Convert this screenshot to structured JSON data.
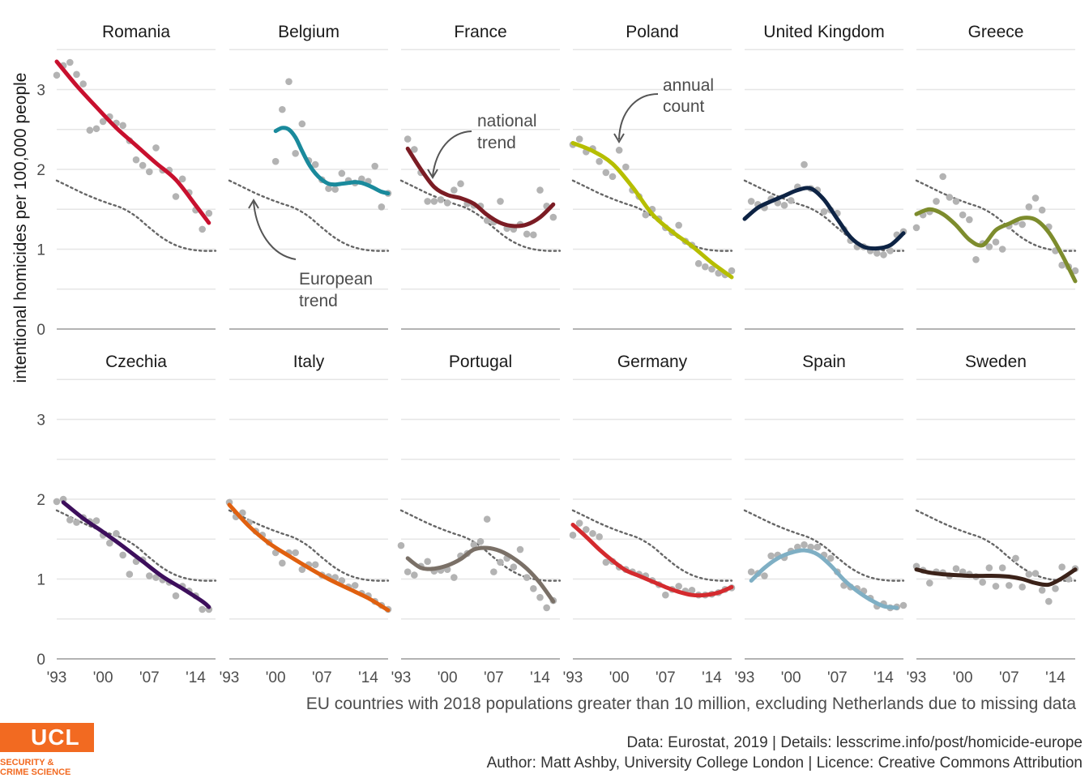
{
  "ylabel": "intentional homicides per 100,000 people",
  "subtitle": "EU countries with 2018 populations greater than 10 million, excluding Netherlands due to missing data",
  "caption": {
    "line1": "Data: Eurostat, 2019 |  Details: lesscrime.info/post/homicide-europe",
    "line2": "Author: Matt Ashby, University College London |  Licence: Creative Commons Attribution"
  },
  "logo": {
    "mark": "UCL",
    "line1": "SECURITY &",
    "line2": "CRIME SCIENCE",
    "color": "#f26a21"
  },
  "annotations": {
    "european": [
      "European",
      "trend"
    ],
    "national": [
      "national",
      "trend"
    ],
    "annual": [
      "annual",
      "count"
    ]
  },
  "chart_data": {
    "type": "line",
    "layout": "small-multiples",
    "xlim": [
      1993,
      2017
    ],
    "ylim": [
      0,
      3.5
    ],
    "x_ticks": [
      1993,
      2000,
      2007,
      2014
    ],
    "x_tick_labels": [
      "'93",
      "'00",
      "'07",
      "'14"
    ],
    "y_ticks": [
      0,
      1,
      2,
      3
    ],
    "grid": true,
    "european_trend": {
      "x": [
        1993,
        1995,
        1997,
        1999,
        2001,
        2003,
        2005,
        2007,
        2009,
        2011,
        2013,
        2015,
        2017
      ],
      "y": [
        1.86,
        1.78,
        1.7,
        1.63,
        1.57,
        1.51,
        1.41,
        1.27,
        1.14,
        1.05,
        1.0,
        0.98,
        0.98
      ]
    },
    "countries": [
      {
        "name": "Romania",
        "color": "#c8102e",
        "trend": {
          "x": [
            1993,
            1996,
            1999,
            2002,
            2005,
            2008,
            2011,
            2014,
            2016
          ],
          "y": [
            3.35,
            3.05,
            2.78,
            2.52,
            2.3,
            2.08,
            1.87,
            1.55,
            1.33
          ]
        },
        "points": {
          "x": [
            1993,
            1994,
            1995,
            1996,
            1997,
            1998,
            1999,
            2000,
            2001,
            2002,
            2003,
            2004,
            2005,
            2006,
            2007,
            2008,
            2009,
            2010,
            2011,
            2012,
            2013,
            2014,
            2015,
            2016
          ],
          "y": [
            3.18,
            3.3,
            3.34,
            3.19,
            3.07,
            2.49,
            2.51,
            2.6,
            2.66,
            2.58,
            2.55,
            2.36,
            2.12,
            2.05,
            1.97,
            2.27,
            1.99,
            1.99,
            1.66,
            1.88,
            1.71,
            1.49,
            1.25,
            1.45
          ]
        }
      },
      {
        "name": "Belgium",
        "color": "#1a8a9c",
        "trend": {
          "x": [
            2000,
            2001,
            2002,
            2003,
            2004,
            2005,
            2006,
            2007,
            2008,
            2009,
            2010,
            2011,
            2012,
            2013,
            2014,
            2015,
            2016,
            2017
          ],
          "y": [
            2.48,
            2.52,
            2.5,
            2.4,
            2.23,
            2.07,
            1.95,
            1.87,
            1.82,
            1.81,
            1.82,
            1.83,
            1.84,
            1.83,
            1.8,
            1.76,
            1.72,
            1.7
          ]
        },
        "points": {
          "x": [
            2000,
            2001,
            2002,
            2003,
            2004,
            2005,
            2006,
            2007,
            2008,
            2009,
            2010,
            2011,
            2012,
            2013,
            2014,
            2015,
            2016,
            2017
          ],
          "y": [
            2.1,
            2.75,
            3.1,
            2.2,
            2.57,
            2.11,
            2.06,
            1.87,
            1.76,
            1.75,
            1.95,
            1.86,
            1.83,
            1.88,
            1.85,
            2.04,
            1.53,
            1.7
          ]
        }
      },
      {
        "name": "France",
        "color": "#7b1c24",
        "trend": {
          "x": [
            1994,
            1996,
            1998,
            2000,
            2002,
            2004,
            2006,
            2008,
            2010,
            2012,
            2014,
            2016
          ],
          "y": [
            2.26,
            2.0,
            1.78,
            1.68,
            1.64,
            1.57,
            1.43,
            1.33,
            1.29,
            1.31,
            1.4,
            1.56
          ]
        },
        "points": {
          "x": [
            1994,
            1995,
            1996,
            1997,
            1998,
            1999,
            2000,
            2001,
            2002,
            2003,
            2004,
            2005,
            2006,
            2007,
            2008,
            2009,
            2010,
            2011,
            2012,
            2013,
            2014,
            2015,
            2016
          ],
          "y": [
            2.38,
            2.25,
            1.96,
            1.6,
            1.6,
            1.62,
            1.58,
            1.74,
            1.82,
            1.57,
            1.55,
            1.54,
            1.36,
            1.34,
            1.6,
            1.26,
            1.25,
            1.31,
            1.19,
            1.18,
            1.74,
            1.54,
            1.4
          ]
        }
      },
      {
        "name": "Poland",
        "color": "#b6be00",
        "trend": {
          "x": [
            1993,
            1996,
            1999,
            2002,
            2005,
            2008,
            2011,
            2014,
            2017
          ],
          "y": [
            2.33,
            2.23,
            2.07,
            1.78,
            1.44,
            1.22,
            1.04,
            0.83,
            0.65
          ]
        },
        "points": {
          "x": [
            1993,
            1994,
            1995,
            1996,
            1997,
            1998,
            1999,
            2000,
            2001,
            2002,
            2003,
            2004,
            2005,
            2006,
            2007,
            2008,
            2009,
            2010,
            2011,
            2012,
            2013,
            2014,
            2015,
            2016,
            2017
          ],
          "y": [
            2.31,
            2.38,
            2.22,
            2.26,
            2.1,
            1.96,
            1.91,
            2.24,
            2.03,
            1.74,
            1.66,
            1.43,
            1.5,
            1.38,
            1.27,
            1.21,
            1.3,
            1.1,
            1.05,
            0.82,
            0.78,
            0.75,
            0.7,
            0.68,
            0.73
          ]
        }
      },
      {
        "name": "United Kingdom",
        "color": "#0d2344",
        "trend": {
          "x": [
            1993,
            1995,
            1997,
            1999,
            2001,
            2003,
            2005,
            2007,
            2009,
            2011,
            2013,
            2015,
            2017
          ],
          "y": [
            1.38,
            1.52,
            1.6,
            1.67,
            1.74,
            1.76,
            1.62,
            1.38,
            1.15,
            1.03,
            1.01,
            1.05,
            1.2
          ]
        },
        "points": {
          "x": [
            1994,
            1995,
            1996,
            1997,
            1998,
            1999,
            2000,
            2001,
            2002,
            2003,
            2004,
            2005,
            2006,
            2007,
            2008,
            2009,
            2010,
            2011,
            2012,
            2013,
            2014,
            2015,
            2016,
            2017
          ],
          "y": [
            1.6,
            1.56,
            1.52,
            1.63,
            1.58,
            1.55,
            1.61,
            1.78,
            2.06,
            1.76,
            1.74,
            1.47,
            1.49,
            1.45,
            1.25,
            1.11,
            1.03,
            1.03,
            0.98,
            0.95,
            0.93,
            0.98,
            1.18,
            1.22
          ]
        }
      },
      {
        "name": "Greece",
        "color": "#7d8c2d",
        "trend": {
          "x": [
            1993,
            1995,
            1997,
            1999,
            2001,
            2003,
            2005,
            2007,
            2009,
            2011,
            2013,
            2015,
            2017
          ],
          "y": [
            1.44,
            1.5,
            1.44,
            1.3,
            1.12,
            1.05,
            1.24,
            1.32,
            1.39,
            1.37,
            1.21,
            0.93,
            0.6
          ]
        },
        "points": {
          "x": [
            1993,
            1994,
            1995,
            1996,
            1997,
            1998,
            1999,
            2000,
            2001,
            2002,
            2003,
            2004,
            2005,
            2006,
            2007,
            2008,
            2009,
            2010,
            2011,
            2012,
            2013,
            2014,
            2015,
            2016,
            2017
          ],
          "y": [
            1.27,
            1.43,
            1.47,
            1.6,
            1.91,
            1.65,
            1.6,
            1.43,
            1.37,
            0.87,
            1.07,
            1.03,
            1.09,
            1.0,
            1.29,
            1.34,
            1.31,
            1.53,
            1.64,
            1.49,
            1.28,
            0.98,
            0.8,
            0.78,
            0.73
          ]
        }
      },
      {
        "name": "Czechia",
        "color": "#3d0f5c",
        "trend": {
          "x": [
            1994,
            1997,
            2000,
            2003,
            2006,
            2009,
            2012,
            2015,
            2016
          ],
          "y": [
            1.96,
            1.76,
            1.59,
            1.41,
            1.22,
            1.03,
            0.88,
            0.72,
            0.65
          ]
        },
        "points": {
          "x": [
            1993,
            1994,
            1995,
            1996,
            1997,
            1998,
            1999,
            2000,
            2001,
            2002,
            2003,
            2004,
            2005,
            2006,
            2007,
            2008,
            2009,
            2010,
            2011,
            2012,
            2013,
            2014,
            2015,
            2016
          ],
          "y": [
            1.97,
            2.0,
            1.74,
            1.71,
            1.77,
            1.72,
            1.73,
            1.55,
            1.45,
            1.57,
            1.3,
            1.06,
            1.22,
            1.24,
            1.04,
            1.02,
            0.99,
            0.96,
            0.79,
            0.91,
            0.85,
            0.79,
            0.62,
            0.62
          ]
        }
      },
      {
        "name": "Italy",
        "color": "#e0600f",
        "trend": {
          "x": [
            1993,
            1996,
            1999,
            2002,
            2005,
            2008,
            2011,
            2014,
            2017
          ],
          "y": [
            1.93,
            1.66,
            1.45,
            1.29,
            1.14,
            1.0,
            0.88,
            0.76,
            0.61
          ]
        },
        "points": {
          "x": [
            1993,
            1994,
            1995,
            1996,
            1997,
            1998,
            1999,
            2000,
            2001,
            2002,
            2003,
            2004,
            2005,
            2006,
            2007,
            2008,
            2009,
            2010,
            2011,
            2012,
            2013,
            2014,
            2015,
            2016,
            2017
          ],
          "y": [
            1.96,
            1.78,
            1.83,
            1.71,
            1.6,
            1.55,
            1.46,
            1.33,
            1.2,
            1.33,
            1.33,
            1.12,
            1.18,
            1.18,
            1.05,
            1.03,
            1.02,
            0.98,
            0.9,
            0.92,
            0.82,
            0.79,
            0.72,
            0.67,
            0.62
          ]
        }
      },
      {
        "name": "Portugal",
        "color": "#7a7067",
        "trend": {
          "x": [
            1994,
            1996,
            1998,
            2000,
            2002,
            2004,
            2006,
            2008,
            2010,
            2012,
            2014,
            2016
          ],
          "y": [
            1.26,
            1.14,
            1.13,
            1.17,
            1.25,
            1.37,
            1.39,
            1.35,
            1.26,
            1.13,
            0.95,
            0.72
          ]
        },
        "points": {
          "x": [
            1993,
            1994,
            1995,
            1996,
            1997,
            1998,
            1999,
            2000,
            2001,
            2002,
            2003,
            2004,
            2005,
            2006,
            2007,
            2008,
            2009,
            2010,
            2011,
            2012,
            2013,
            2014,
            2015,
            2016
          ],
          "y": [
            1.42,
            1.09,
            1.05,
            1.16,
            1.22,
            1.1,
            1.11,
            1.12,
            1.02,
            1.29,
            1.32,
            1.43,
            1.47,
            1.75,
            1.09,
            1.21,
            1.26,
            1.15,
            1.37,
            1.02,
            0.88,
            0.77,
            0.64,
            0.73
          ]
        }
      },
      {
        "name": "Germany",
        "color": "#d42a2e",
        "trend": {
          "x": [
            1993,
            1995,
            1997,
            1999,
            2001,
            2003,
            2005,
            2007,
            2009,
            2011,
            2013,
            2015,
            2017
          ],
          "y": [
            1.68,
            1.53,
            1.37,
            1.23,
            1.11,
            1.04,
            0.97,
            0.9,
            0.84,
            0.8,
            0.8,
            0.83,
            0.9
          ]
        },
        "points": {
          "x": [
            1993,
            1994,
            1995,
            1996,
            1997,
            1998,
            1999,
            2000,
            2001,
            2002,
            2003,
            2004,
            2005,
            2006,
            2007,
            2008,
            2009,
            2010,
            2011,
            2012,
            2013,
            2014,
            2015,
            2016,
            2017
          ],
          "y": [
            1.55,
            1.7,
            1.62,
            1.57,
            1.53,
            1.21,
            1.22,
            1.15,
            1.12,
            1.09,
            1.06,
            1.04,
            0.98,
            0.93,
            0.8,
            0.87,
            0.91,
            0.85,
            0.86,
            0.8,
            0.8,
            0.81,
            0.83,
            0.87,
            0.89
          ]
        }
      },
      {
        "name": "Spain",
        "color": "#7fafc4",
        "trend": {
          "x": [
            1994,
            1996,
            1998,
            2000,
            2002,
            2004,
            2006,
            2008,
            2010,
            2012,
            2014,
            2016
          ],
          "y": [
            0.98,
            1.14,
            1.26,
            1.33,
            1.36,
            1.31,
            1.17,
            0.99,
            0.85,
            0.74,
            0.66,
            0.64
          ]
        },
        "points": {
          "x": [
            1994,
            1995,
            1996,
            1997,
            1998,
            1999,
            2000,
            2001,
            2002,
            2003,
            2004,
            2005,
            2006,
            2007,
            2008,
            2009,
            2010,
            2011,
            2012,
            2013,
            2014,
            2015,
            2016,
            2017
          ],
          "y": [
            1.09,
            1.07,
            1.04,
            1.29,
            1.3,
            1.27,
            1.35,
            1.4,
            1.43,
            1.4,
            1.4,
            1.3,
            1.26,
            1.09,
            0.92,
            0.9,
            0.88,
            0.85,
            0.76,
            0.66,
            0.69,
            0.64,
            0.65,
            0.67
          ]
        }
      },
      {
        "name": "Sweden",
        "color": "#3b2219",
        "trend": {
          "x": [
            1993,
            1995,
            1997,
            1999,
            2001,
            2003,
            2005,
            2007,
            2009,
            2011,
            2013,
            2015,
            2017
          ],
          "y": [
            1.12,
            1.08,
            1.06,
            1.05,
            1.04,
            1.04,
            1.04,
            1.03,
            1.0,
            0.95,
            0.93,
            1.01,
            1.12
          ]
        },
        "points": {
          "x": [
            1993,
            1994,
            1995,
            1996,
            1997,
            1998,
            1999,
            2000,
            2001,
            2002,
            2003,
            2004,
            2005,
            2006,
            2007,
            2008,
            2009,
            2010,
            2011,
            2012,
            2013,
            2014,
            2015,
            2016,
            2017
          ],
          "y": [
            1.16,
            1.11,
            0.95,
            1.09,
            1.08,
            1.04,
            1.13,
            1.09,
            1.06,
            1.03,
            0.96,
            1.14,
            0.91,
            1.14,
            0.92,
            1.26,
            0.9,
            1.06,
            1.07,
            0.86,
            0.72,
            0.88,
            1.15,
            1.0,
            1.13
          ]
        }
      }
    ]
  }
}
